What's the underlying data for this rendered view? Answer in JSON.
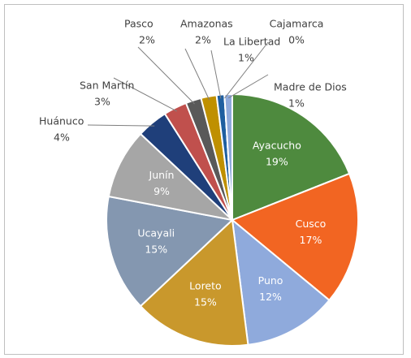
{
  "chart_data": {
    "type": "pie",
    "categories": [
      "Ayacucho",
      "Cusco",
      "Puno",
      "Loreto",
      "Ucayali",
      "Junín",
      "Huánuco",
      "San Martín",
      "Pasco",
      "Amazonas",
      "La Libertad",
      "Cajamarca",
      "Madre de Dios"
    ],
    "values": [
      19,
      17,
      12,
      15,
      15,
      9,
      4,
      3,
      2,
      2,
      1,
      0,
      1
    ],
    "value_labels": [
      "19%",
      "17%",
      "12%",
      "15%",
      "15%",
      "9%",
      "4%",
      "3%",
      "2%",
      "2%",
      "1%",
      "0%",
      "1%"
    ],
    "colors": [
      "#4e8a3e",
      "#f26522",
      "#8faadc",
      "#c9982c",
      "#8497b0",
      "#a6a6a6",
      "#1f3f7a",
      "#c0504d",
      "#595959",
      "#bf9000",
      "#1f5fa0",
      "#2e7d32",
      "#8faadc"
    ]
  }
}
